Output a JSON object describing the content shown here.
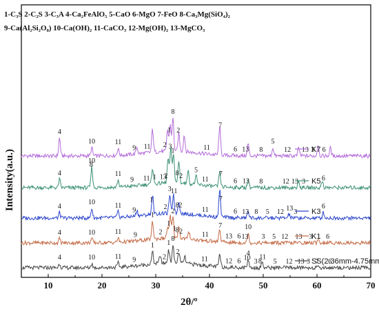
{
  "chart_data": {
    "type": "line",
    "phase_key": [
      "1-C₃S 2-C₂S 3-C₃A 4-Ca₂FeAlO₅ 5-CaO 6-MgO 7-FeO 8-Ca₃Mg(SiO₄)₂",
      "9-Ca(Al₂Si₂O₈) 10-Ca(OH)₂ 11-CaCO₃ 12-Mg(OH)₂ 13-MgCO₃"
    ],
    "xlabel": "2θ/º",
    "ylabel": "Intensity(a.u.)",
    "xlim": [
      5,
      70
    ],
    "xticks": [
      10,
      20,
      30,
      40,
      50,
      60,
      70
    ],
    "x_tick_labels": [
      "10",
      "20",
      "30",
      "40",
      "50",
      "60",
      "70"
    ],
    "colors": {
      "K7": "#b36bd9",
      "K5": "#3a8f73",
      "K3": "#2b45cc",
      "K1": "#c46a45",
      "SS": "#444444"
    },
    "series": [
      {
        "name": "K7",
        "legend_label": "K7",
        "baseline": 8.1,
        "peaks": [
          [
            12.1,
            1.3
          ],
          [
            18.1,
            0.6
          ],
          [
            23.0,
            0.5
          ],
          [
            26.5,
            0.5
          ],
          [
            29.4,
            1.7
          ],
          [
            32.2,
            1.6
          ],
          [
            32.7,
            1.9
          ],
          [
            33.2,
            2.4
          ],
          [
            34.3,
            1.3
          ],
          [
            35.3,
            1.2
          ],
          [
            41.9,
            2.1
          ],
          [
            47.2,
            0.9
          ],
          [
            51.8,
            0.6
          ],
          [
            56.6,
            0.6
          ],
          [
            60.2,
            0.8
          ],
          [
            62.5,
            0.6
          ]
        ],
        "labels": [
          [
            12.1,
            "4"
          ],
          [
            18.1,
            "10"
          ],
          [
            23.0,
            "11"
          ],
          [
            26.0,
            "9"
          ],
          [
            28.4,
            "11"
          ],
          [
            31.7,
            "2"
          ],
          [
            32.5,
            "1"
          ],
          [
            33.2,
            "8"
          ],
          [
            34.2,
            "2"
          ],
          [
            39.5,
            "11"
          ],
          [
            42.0,
            "7"
          ],
          [
            44.8,
            "6"
          ],
          [
            46.7,
            "13"
          ],
          [
            49.6,
            "8"
          ],
          [
            51.8,
            "5"
          ],
          [
            54.5,
            "12"
          ],
          [
            57.8,
            "13"
          ],
          [
            59.2,
            "3"
          ],
          [
            61.3,
            "6"
          ]
        ]
      },
      {
        "name": "K5",
        "legend_label": "K5",
        "baseline": 5.8,
        "peaks": [
          [
            12.1,
            0.6
          ],
          [
            18.1,
            1.5
          ],
          [
            23.0,
            0.5
          ],
          [
            29.4,
            1.2
          ],
          [
            32.3,
            1.8
          ],
          [
            32.8,
            2.6
          ],
          [
            33.3,
            2.2
          ],
          [
            34.3,
            1.6
          ],
          [
            36.0,
            1.0
          ],
          [
            37.5,
            0.6
          ],
          [
            41.9,
            1.1
          ],
          [
            47.2,
            0.6
          ],
          [
            56.6,
            0.4
          ],
          [
            61.0,
            0.5
          ]
        ],
        "labels": [
          [
            12.1,
            "4"
          ],
          [
            18.1,
            "10"
          ],
          [
            18.0,
            "8"
          ],
          [
            23.0,
            "11"
          ],
          [
            25.6,
            "9"
          ],
          [
            28.3,
            "11"
          ],
          [
            29.8,
            "1"
          ],
          [
            31.4,
            "13"
          ],
          [
            31.9,
            "2"
          ],
          [
            32.7,
            "3"
          ],
          [
            33.2,
            "1"
          ],
          [
            34.0,
            "8"
          ],
          [
            34.7,
            "2"
          ],
          [
            37.5,
            "5"
          ],
          [
            39.2,
            "11"
          ],
          [
            42.1,
            "7"
          ],
          [
            44.8,
            "6"
          ],
          [
            46.8,
            "13"
          ],
          [
            49.6,
            "8"
          ],
          [
            54.2,
            "12"
          ],
          [
            55.9,
            "13"
          ],
          [
            57.5,
            "3"
          ],
          [
            61.2,
            "6"
          ]
        ]
      },
      {
        "name": "K3",
        "legend_label": "K3",
        "baseline": 3.6,
        "peaks": [
          [
            12.1,
            0.4
          ],
          [
            18.1,
            0.7
          ],
          [
            23.0,
            0.4
          ],
          [
            26.5,
            0.4
          ],
          [
            29.4,
            1.4
          ],
          [
            32.6,
            1.3
          ],
          [
            33.3,
            1.4
          ],
          [
            34.3,
            0.9
          ],
          [
            41.9,
            2.0
          ],
          [
            47.2,
            0.5
          ],
          [
            54.8,
            0.3
          ],
          [
            61.2,
            0.4
          ]
        ],
        "labels": [
          [
            12.1,
            "4"
          ],
          [
            18.1,
            "10"
          ],
          [
            23.0,
            "11"
          ],
          [
            26.0,
            "9"
          ],
          [
            29.2,
            "1"
          ],
          [
            31.8,
            "2"
          ],
          [
            32.6,
            "3"
          ],
          [
            33.4,
            "11"
          ],
          [
            34.0,
            "8"
          ],
          [
            34.6,
            "2"
          ],
          [
            39.2,
            "11"
          ],
          [
            42.1,
            "7"
          ],
          [
            44.8,
            "6"
          ],
          [
            46.7,
            "13"
          ],
          [
            48.7,
            "8"
          ],
          [
            50.8,
            "5"
          ],
          [
            53.2,
            "12"
          ],
          [
            54.9,
            "13"
          ],
          [
            56.0,
            "3"
          ],
          [
            61.2,
            "6"
          ]
        ]
      },
      {
        "name": "K1",
        "legend_label": "K1",
        "baseline": 1.8,
        "peaks": [
          [
            12.1,
            0.3
          ],
          [
            18.1,
            0.3
          ],
          [
            23.0,
            0.3
          ],
          [
            29.4,
            1.3
          ],
          [
            32.2,
            0.8
          ],
          [
            32.7,
            1.6
          ],
          [
            33.2,
            1.5
          ],
          [
            34.3,
            0.9
          ],
          [
            36.2,
            0.5
          ],
          [
            41.9,
            0.9
          ],
          [
            47.2,
            0.7
          ],
          [
            60.2,
            0.3
          ]
        ],
        "labels": [
          [
            12.1,
            "4"
          ],
          [
            18.1,
            "10"
          ],
          [
            23.0,
            "11"
          ],
          [
            26.2,
            "9"
          ],
          [
            29.4,
            "1"
          ],
          [
            30.9,
            "2"
          ],
          [
            32.4,
            "1"
          ],
          [
            33.2,
            "2"
          ],
          [
            33.5,
            "1"
          ],
          [
            34.0,
            "8"
          ],
          [
            34.7,
            "2"
          ],
          [
            39.2,
            "11"
          ],
          [
            42.0,
            "7"
          ],
          [
            43.6,
            "13"
          ],
          [
            45.5,
            "6"
          ],
          [
            46.6,
            "13"
          ],
          [
            47.2,
            "10"
          ],
          [
            50.0,
            "3"
          ],
          [
            52.0,
            "5"
          ],
          [
            54.0,
            "12"
          ],
          [
            56.6,
            "13"
          ],
          [
            58.8,
            "3"
          ],
          [
            62.0,
            "6"
          ]
        ]
      },
      {
        "name": "SS",
        "legend_label": "SS(2.36mm-4.75mm)",
        "baseline": 0,
        "peaks": [
          [
            12.1,
            0.3
          ],
          [
            18.1,
            0.3
          ],
          [
            23.0,
            0.3
          ],
          [
            29.4,
            0.9
          ],
          [
            30.8,
            0.6
          ],
          [
            32.4,
            1.0
          ],
          [
            33.2,
            1.3
          ],
          [
            34.3,
            0.8
          ],
          [
            35.4,
            0.5
          ],
          [
            41.9,
            0.9
          ],
          [
            47.2,
            0.6
          ],
          [
            49.8,
            0.4
          ]
        ],
        "labels": [
          [
            12.1,
            "4"
          ],
          [
            18.1,
            "10"
          ],
          [
            23.0,
            "11"
          ],
          [
            26.0,
            "9"
          ],
          [
            29.4,
            "1"
          ],
          [
            31.6,
            "2"
          ],
          [
            32.4,
            "1"
          ],
          [
            33.2,
            "8"
          ],
          [
            34.1,
            "2"
          ],
          [
            39.1,
            "11"
          ],
          [
            43.6,
            "12"
          ],
          [
            45.5,
            "6"
          ],
          [
            47.0,
            "10"
          ],
          [
            47.2,
            "4"
          ],
          [
            48.6,
            "3"
          ],
          [
            49.4,
            "8"
          ],
          [
            49.9,
            "11"
          ],
          [
            52.2,
            "5"
          ],
          [
            54.8,
            "12"
          ],
          [
            57.0,
            "13"
          ],
          [
            58.4,
            "3"
          ],
          [
            60.0,
            "7"
          ],
          [
            62.4,
            "6"
          ]
        ]
      }
    ],
    "legend_placement": "right, beside each curve",
    "grid": false
  }
}
